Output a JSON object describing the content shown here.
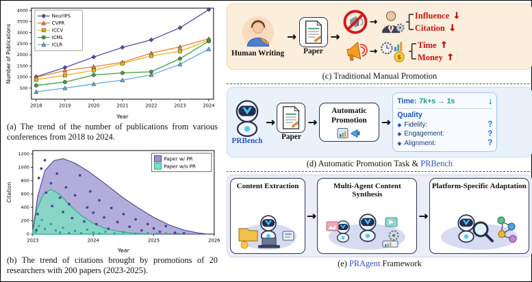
{
  "figure": {
    "captions": {
      "c": "(c) Traditional Manual Promotion",
      "d_prefix": "(d) Automatic Promotion Task & ",
      "d_link": "PRBench",
      "e_prefix": "(e) ",
      "e_link": "PRAgent",
      "e_suffix": " Framework"
    }
  },
  "chart_data": [
    {
      "id": "publications-trend",
      "type": "line",
      "title": "",
      "xlabel": "Year",
      "ylabel": "Number of Publications",
      "x": [
        2018,
        2019,
        2020,
        2021,
        2022,
        2023,
        2024
      ],
      "ylim": [
        0,
        4100
      ],
      "yticks": [
        500,
        1000,
        1500,
        2000,
        2500,
        3000,
        3500,
        4000
      ],
      "legend_position": "upper left",
      "grid": false,
      "series": [
        {
          "name": "NeurIPS",
          "color": "#4c4ca6",
          "marker": "diamond",
          "values": [
            1011,
            1428,
            1900,
            2334,
            2672,
            3218,
            4035
          ]
        },
        {
          "name": "CVPR",
          "color": "#ed7d31",
          "marker": "triangle",
          "values": [
            979,
            1294,
            1466,
            1660,
            2074,
            2359,
            2719
          ]
        },
        {
          "name": "ICCV",
          "color": "#e2b420",
          "marker": "square",
          "values": [
            880,
            1075,
            1300,
            1612,
            1950,
            2161,
            2650
          ]
        },
        {
          "name": "ICML",
          "color": "#3f9b41",
          "marker": "circle",
          "values": [
            621,
            773,
            1088,
            1184,
            1235,
            1828,
            2610
          ]
        },
        {
          "name": "ICLR",
          "color": "#61a8dc",
          "marker": "triangle",
          "values": [
            336,
            500,
            687,
            860,
            1095,
            1574,
            2260
          ]
        }
      ],
      "caption": "(a) The trend of the number of publications from various conferences from 2018 to 2024."
    },
    {
      "id": "citations-trend",
      "type": "area-scatter",
      "title": "",
      "xlabel": "Year",
      "ylabel": "Citation",
      "xlim": [
        2023,
        2026
      ],
      "xticks": [
        2023,
        2024,
        2025,
        2026
      ],
      "ylim": [
        0,
        1250
      ],
      "yticks": [
        0,
        200,
        400,
        600,
        800,
        1000,
        1200
      ],
      "legend_position": "upper right",
      "series": [
        {
          "name": "Paper w/ PR",
          "color": "#4a4392",
          "fill": "#9a92cf",
          "area_x": [
            2023.0,
            2023.08,
            2023.2,
            2023.35,
            2023.5,
            2023.7,
            2023.9,
            2024.1,
            2024.3,
            2024.5,
            2024.75,
            2025.0,
            2025.25,
            2025.5,
            2025.75,
            2025.9
          ],
          "area_y": [
            40,
            560,
            950,
            1100,
            1130,
            1060,
            950,
            820,
            680,
            540,
            390,
            250,
            140,
            60,
            15,
            0
          ]
        },
        {
          "name": "Paper w/o PR",
          "color": "#1fae85",
          "fill": "#79e2c0",
          "area_x": [
            2023.0,
            2023.07,
            2023.18,
            2023.3,
            2023.45,
            2023.6,
            2023.8,
            2024.0,
            2024.2,
            2024.45,
            2024.7,
            2024.95
          ],
          "area_y": [
            30,
            380,
            600,
            670,
            590,
            440,
            280,
            160,
            85,
            35,
            10,
            0
          ]
        }
      ],
      "scatter": {
        "with_pr": [
          [
            2023.06,
            60
          ],
          [
            2023.08,
            300
          ],
          [
            2023.1,
            840
          ],
          [
            2023.14,
            980
          ],
          [
            2023.2,
            1105
          ],
          [
            2023.22,
            620
          ],
          [
            2023.3,
            760
          ],
          [
            2023.32,
            420
          ],
          [
            2023.4,
            905
          ],
          [
            2023.45,
            545
          ],
          [
            2023.5,
            330
          ],
          [
            2023.55,
            700
          ],
          [
            2023.6,
            450
          ],
          [
            2023.65,
            240
          ],
          [
            2023.7,
            580
          ],
          [
            2023.78,
            880
          ],
          [
            2023.85,
            190
          ],
          [
            2023.9,
            400
          ],
          [
            2023.95,
            640
          ],
          [
            2024.0,
            320
          ],
          [
            2024.05,
            150
          ],
          [
            2024.1,
            505
          ],
          [
            2024.18,
            250
          ],
          [
            2024.25,
            80
          ],
          [
            2024.3,
            390
          ],
          [
            2024.4,
            180
          ],
          [
            2024.5,
            300
          ],
          [
            2024.6,
            110
          ],
          [
            2024.7,
            220
          ],
          [
            2024.8,
            55
          ],
          [
            2024.9,
            150
          ],
          [
            2025.0,
            85
          ],
          [
            2025.1,
            35
          ],
          [
            2025.2,
            120
          ],
          [
            2025.35,
            20
          ],
          [
            2025.5,
            12
          ]
        ],
        "without_pr": [
          [
            2023.05,
            35
          ],
          [
            2023.1,
            120
          ],
          [
            2023.15,
            210
          ],
          [
            2023.2,
            75
          ],
          [
            2023.3,
            150
          ],
          [
            2023.38,
            55
          ],
          [
            2023.45,
            25
          ],
          [
            2023.5,
            95
          ],
          [
            2023.6,
            18
          ],
          [
            2023.7,
            48
          ],
          [
            2023.8,
            12
          ],
          [
            2023.9,
            65
          ],
          [
            2024.0,
            22
          ],
          [
            2024.1,
            8
          ],
          [
            2024.2,
            35
          ],
          [
            2024.35,
            10
          ],
          [
            2024.5,
            28
          ],
          [
            2024.7,
            8
          ],
          [
            2024.9,
            15
          ],
          [
            2025.05,
            6
          ],
          [
            2025.2,
            10
          ],
          [
            2025.4,
            5
          ]
        ]
      },
      "caption": "(b) The trend of citations brought by promotions of 20 researchers with 200 papers (2023-2025)."
    }
  ],
  "panels": {
    "c": {
      "human_label": "Human Writing",
      "paper_label": "Paper",
      "outcomes_top": [
        {
          "label": "Influence",
          "arrow": "↓"
        },
        {
          "label": "Citation",
          "arrow": "↓"
        }
      ],
      "outcomes_bottom": [
        {
          "label": "Time",
          "arrow": "↑"
        },
        {
          "label": "Money",
          "arrow": "↑"
        }
      ]
    },
    "d": {
      "robot_label": "PRBench",
      "paper_label": "Paper",
      "auto_label": "Automatic Promotion",
      "time_label": "Time:",
      "time_value": "7k+s → 1s",
      "time_arrow": "↓",
      "quality_label": "Quality",
      "bullet": "◆",
      "quality_items": [
        {
          "label": "Fidelity:",
          "value": "?"
        },
        {
          "label": "Engagement:",
          "value": "?"
        },
        {
          "label": "Alignment:",
          "value": "?"
        }
      ]
    },
    "e": {
      "steps": [
        "Content Extraction",
        "Multi-Agent Content Synthesis",
        "Platform-Specific Adaptation"
      ]
    }
  },
  "colors": {
    "negative_red": "#c41414",
    "accent_blue": "#2a52be",
    "teal_green": "#18a07c",
    "positive_green": "#1f9d55",
    "panel_c_bg": "#fbeedc",
    "panel_d_bg": "#e9f1fb",
    "panel_e_bg": "#ebedf8"
  }
}
